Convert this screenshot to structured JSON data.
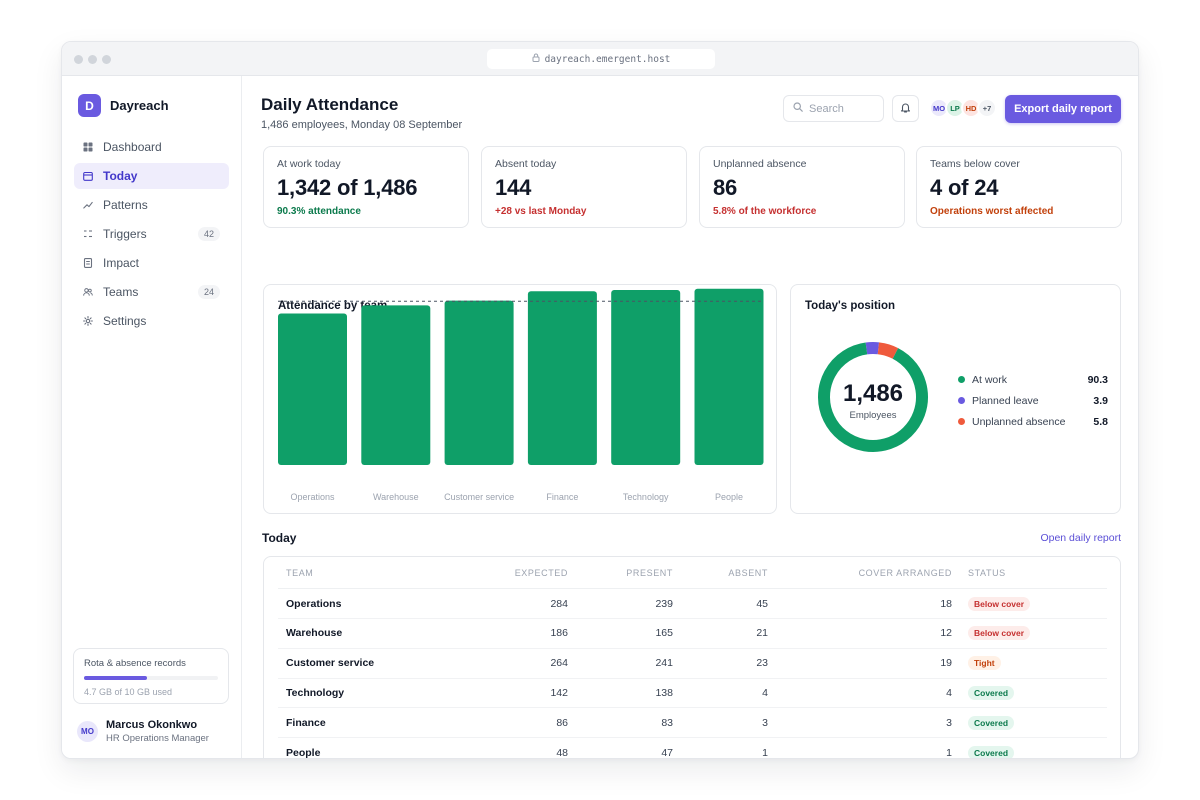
{
  "browser": {
    "url": "dayreach.emergent.host"
  },
  "app": {
    "initial": "D",
    "name": "Dayreach"
  },
  "nav": [
    {
      "label": "Dashboard",
      "icon": "grid-icon",
      "badge": ""
    },
    {
      "label": "Today",
      "icon": "calendar-icon",
      "badge": "",
      "active": true
    },
    {
      "label": "Patterns",
      "icon": "trend-icon",
      "badge": ""
    },
    {
      "label": "Triggers",
      "icon": "list-icon",
      "badge": "42"
    },
    {
      "label": "Impact",
      "icon": "document-icon",
      "badge": ""
    },
    {
      "label": "Teams",
      "icon": "users-icon",
      "badge": "24"
    },
    {
      "label": "Settings",
      "icon": "gear-icon",
      "badge": ""
    }
  ],
  "storage": {
    "title": "Rota & absence records",
    "text": "4.7 GB of 10 GB used",
    "used_fraction": 0.47
  },
  "user": {
    "initials": "MO",
    "name": "Marcus Okonkwo",
    "role": "HR Operations Manager"
  },
  "header": {
    "title": "Daily Attendance",
    "subtitle": "1,486 employees, Monday 08 September",
    "search_placeholder": "Search",
    "avatars": [
      {
        "initials": "MO",
        "bg": "#ebe9fb",
        "fg": "#4338ca"
      },
      {
        "initials": "LP",
        "bg": "#dcf3e7",
        "fg": "#0b7a4c"
      },
      {
        "initials": "HD",
        "bg": "#fde4e1",
        "fg": "#c2410c"
      },
      {
        "initials": "+7",
        "bg": "#f3f4f6",
        "fg": "#4b5563"
      }
    ],
    "export_label": "Export daily report"
  },
  "kpis": [
    {
      "label": "At work today",
      "value": "1,342 of 1,486",
      "note": "90.3% attendance",
      "note_color": "#0b7a4c"
    },
    {
      "label": "Absent today",
      "value": "144",
      "note": "+28 vs last Monday",
      "note_color": "#c53030"
    },
    {
      "label": "Unplanned absence",
      "value": "86",
      "note": "5.8% of the workforce",
      "note_color": "#c53030"
    },
    {
      "label": "Teams below cover",
      "value": "4 of 24",
      "note": "Operations worst affected",
      "note_color": "#c2410c"
    }
  ],
  "chart_data": [
    {
      "type": "bar",
      "title": "Attendance by team",
      "categories": [
        "Operations",
        "Warehouse",
        "Customer service",
        "Finance",
        "Technology",
        "People"
      ],
      "values": [
        84.2,
        88.7,
        91.3,
        96.5,
        97.2,
        97.9
      ],
      "reference_line": 91.0,
      "ylim": [
        0,
        100
      ],
      "color": "#0f9f68",
      "grid": false
    },
    {
      "type": "pie",
      "title": "Today's position",
      "center_value": "1,486",
      "center_label": "Employees",
      "series": [
        {
          "name": "At work",
          "value": 90.3,
          "display": "90.3",
          "color": "#0f9f68"
        },
        {
          "name": "Planned leave",
          "value": 3.9,
          "display": "3.9",
          "color": "#6a5ae0"
        },
        {
          "name": "Unplanned absence",
          "value": 5.8,
          "display": "5.8",
          "color": "#ef5a3c"
        }
      ]
    }
  ],
  "today": {
    "title": "Today",
    "link": "Open daily report",
    "columns": [
      "TEAM",
      "EXPECTED",
      "PRESENT",
      "ABSENT",
      "COVER ARRANGED",
      "STATUS"
    ],
    "rows": [
      {
        "team": "Operations",
        "expected": "284",
        "present": "239",
        "absent": "45",
        "cover": "18",
        "status": "Below cover",
        "status_bg": "#fdecea",
        "status_fg": "#c53030"
      },
      {
        "team": "Warehouse",
        "expected": "186",
        "present": "165",
        "absent": "21",
        "cover": "12",
        "status": "Below cover",
        "status_bg": "#fdecea",
        "status_fg": "#c53030"
      },
      {
        "team": "Customer service",
        "expected": "264",
        "present": "241",
        "absent": "23",
        "cover": "19",
        "status": "Tight",
        "status_bg": "#fff1e6",
        "status_fg": "#c2410c"
      },
      {
        "team": "Technology",
        "expected": "142",
        "present": "138",
        "absent": "4",
        "cover": "4",
        "status": "Covered",
        "status_bg": "#e4f6ee",
        "status_fg": "#0b7a4c"
      },
      {
        "team": "Finance",
        "expected": "86",
        "present": "83",
        "absent": "3",
        "cover": "3",
        "status": "Covered",
        "status_bg": "#e4f6ee",
        "status_fg": "#0b7a4c"
      },
      {
        "team": "People",
        "expected": "48",
        "present": "47",
        "absent": "1",
        "cover": "1",
        "status": "Covered",
        "status_bg": "#e4f6ee",
        "status_fg": "#0b7a4c"
      }
    ]
  }
}
